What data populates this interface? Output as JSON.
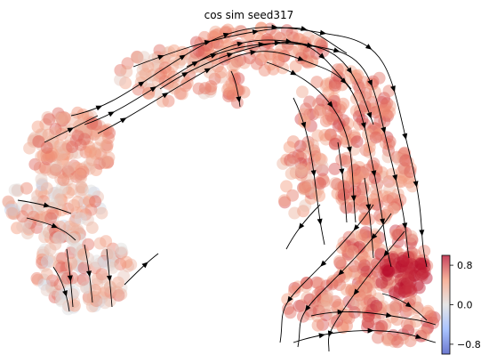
{
  "chart_data": {
    "type": "scatter",
    "title": "cos sim seed317",
    "xlabel": "",
    "ylabel": "",
    "grid": false,
    "axes_visible": false,
    "overlay": "velocity streamlines with arrowheads",
    "colormap": "coolwarm",
    "colorbar": {
      "placement": "bottom-right",
      "ticks": [
        0.8,
        0.0,
        -0.8
      ],
      "tick_labels": [
        "0.8",
        "0.0",
        "−0.8"
      ],
      "range": [
        -1.0,
        1.0
      ]
    },
    "colors": {
      "high": "#b40426",
      "mid": "#dddddd",
      "low": "#3b4cc0",
      "streamline": "#000000"
    }
  }
}
